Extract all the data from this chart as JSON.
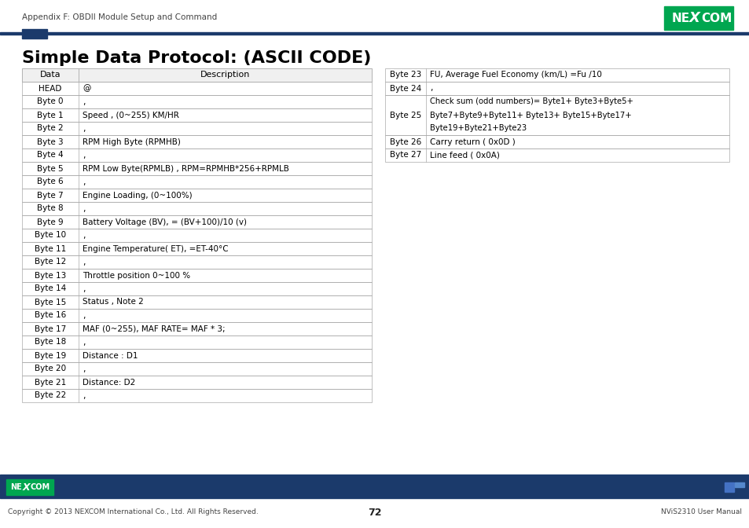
{
  "title": "Simple Data Protocol: (ASCII CODE)",
  "header_text": "Appendix F: OBDII Module Setup and Command",
  "page_number": "72",
  "footer_right": "NViS2310 User Manual",
  "footer_left": "Copyright © 2013 NEXCOM International Co., Ltd. All Rights Reserved.",
  "left_table": {
    "headers": [
      "Data",
      "Description"
    ],
    "rows": [
      [
        "HEAD",
        "@"
      ],
      [
        "Byte 0",
        ","
      ],
      [
        "Byte 1",
        "Speed , (0~255) KM/HR"
      ],
      [
        "Byte 2",
        ","
      ],
      [
        "Byte 3",
        "RPM High Byte (RPMHB)"
      ],
      [
        "Byte 4",
        ","
      ],
      [
        "Byte 5",
        "RPM Low Byte(RPMLB) , RPM=RPMHB*256+RPMLB"
      ],
      [
        "Byte 6",
        ","
      ],
      [
        "Byte 7",
        "Engine Loading, (0~100%)"
      ],
      [
        "Byte 8",
        ","
      ],
      [
        "Byte 9",
        "Battery Voltage (BV), = (BV+100)/10 (v)"
      ],
      [
        "Byte 10",
        ","
      ],
      [
        "Byte 11",
        "Engine Temperature( ET), =ET-40°C"
      ],
      [
        "Byte 12",
        ","
      ],
      [
        "Byte 13",
        "Throttle position 0~100 %"
      ],
      [
        "Byte 14",
        ","
      ],
      [
        "Byte 15",
        "Status , Note 2"
      ],
      [
        "Byte 16",
        ","
      ],
      [
        "Byte 17",
        "MAF (0~255), MAF RATE= MAF * 3;"
      ],
      [
        "Byte 18",
        ","
      ],
      [
        "Byte 19",
        "Distance : D1"
      ],
      [
        "Byte 20",
        ","
      ],
      [
        "Byte 21",
        "Distance: D2"
      ],
      [
        "Byte 22",
        ","
      ]
    ]
  },
  "right_table": {
    "rows": [
      [
        "Byte 23",
        "FU, Average Fuel Economy (km/L) =Fu /10",
        1
      ],
      [
        "Byte 24",
        ",",
        1
      ],
      [
        "Byte 25",
        "Check sum (odd numbers)= Byte1+ Byte3+Byte5+\nByte7+Byte9+Byte11+ Byte13+ Byte15+Byte17+\nByte19+Byte21+Byte23",
        3
      ],
      [
        "Byte 26",
        "Carry return ( 0x0D )",
        1
      ],
      [
        "Byte 27",
        "Line feed ( 0x0A)",
        1
      ]
    ]
  },
  "nexcom_green": "#00a650",
  "nexcom_blue": "#1b3a6b",
  "table_border": "#aaaaaa",
  "bg_color": "#ffffff",
  "text_color": "#000000",
  "header_bg": "#f0f0f0",
  "row_font_size": 7.5,
  "title_font_size": 16
}
